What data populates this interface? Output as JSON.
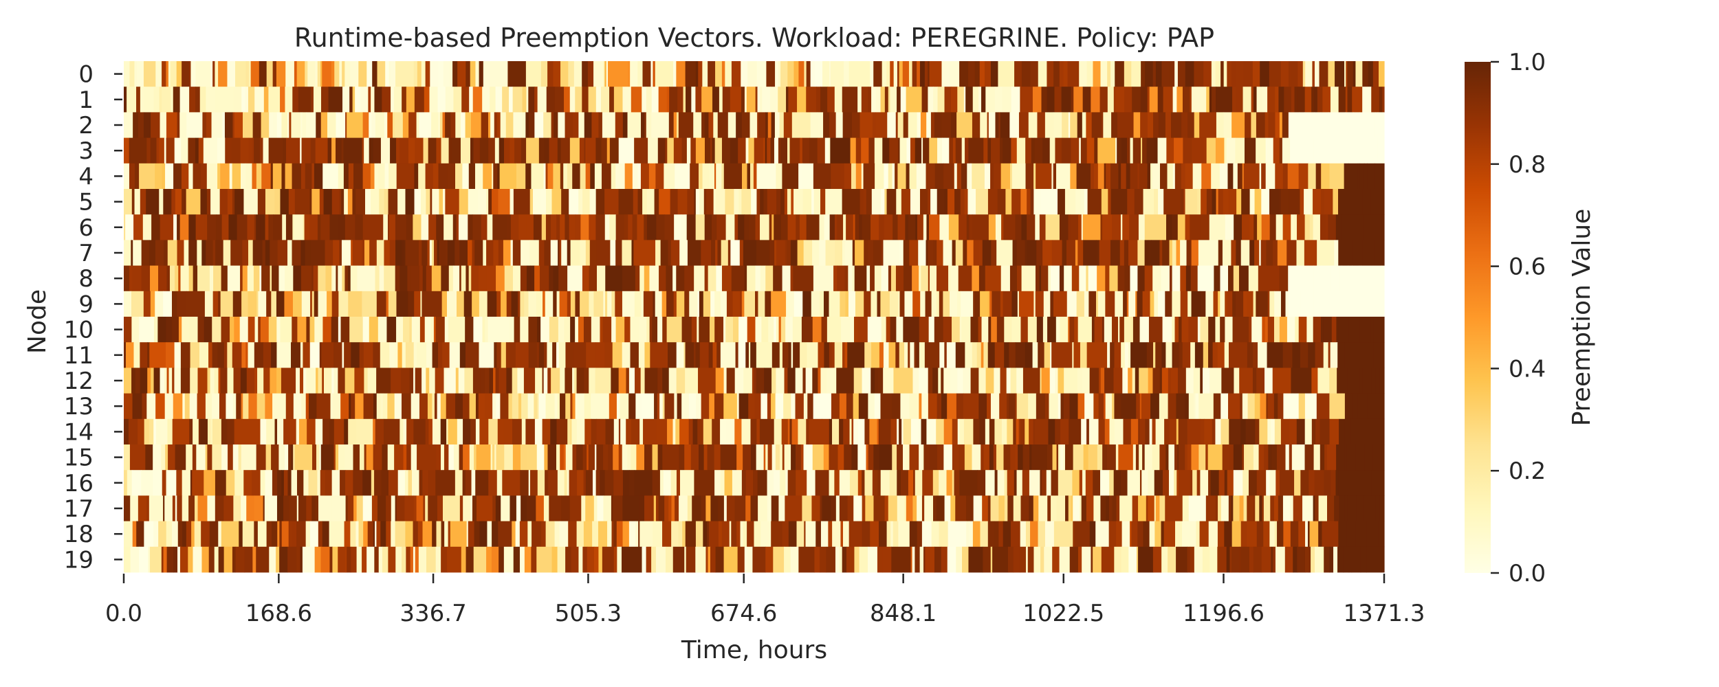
{
  "chart_data": {
    "type": "heatmap",
    "title": "Runtime-based Preemption Vectors. Workload: PEREGRINE. Policy: PAP",
    "xlabel": "Time, hours",
    "ylabel": "Node",
    "rows": [
      "0",
      "1",
      "2",
      "3",
      "4",
      "5",
      "6",
      "7",
      "8",
      "9",
      "10",
      "11",
      "12",
      "13",
      "14",
      "15",
      "16",
      "17",
      "18",
      "19"
    ],
    "x_range": [
      0.0,
      1371.3
    ],
    "x_ticks": [
      0.0,
      168.6,
      336.7,
      505.3,
      674.6,
      848.1,
      1022.5,
      1196.6,
      1371.3
    ],
    "x_tick_labels": [
      "0.0",
      "168.6",
      "336.7",
      "505.3",
      "674.6",
      "848.1",
      "1022.5",
      "1196.6",
      "1371.3"
    ],
    "colorbar": {
      "label": "Preemption Value",
      "range": [
        0.0,
        1.0
      ],
      "ticks": [
        0.0,
        0.2,
        0.4,
        0.6,
        0.8,
        1.0
      ],
      "tick_labels": [
        "0.0",
        "0.2",
        "0.4",
        "0.6",
        "0.8",
        "1.0"
      ],
      "colormap": "YlOrBr",
      "colors": [
        "#ffffe5",
        "#fff7bc",
        "#fee391",
        "#fec44f",
        "#fe9929",
        "#ec7014",
        "#cc4c02",
        "#993404",
        "#662506"
      ]
    },
    "row_density": [
      0.25,
      0.3,
      0.45,
      0.62,
      0.35,
      0.48,
      0.72,
      0.75,
      0.55,
      0.38,
      0.35,
      0.42,
      0.4,
      0.38,
      0.45,
      0.45,
      0.45,
      0.5,
      0.48,
      0.45
    ],
    "row_density_late": [
      0.7,
      0.72,
      0.55,
      0.5,
      0.65,
      0.68,
      0.7,
      0.7,
      0.65,
      0.4,
      0.65,
      0.7,
      0.62,
      0.6,
      0.62,
      0.62,
      0.62,
      0.62,
      0.62,
      0.62
    ],
    "final_segments": [
      {
        "start": 1264.0,
        "end": 1371.3,
        "rows": [
          "2",
          "3",
          "8",
          "9"
        ],
        "value": 0.0
      },
      {
        "start": 1318.0,
        "end": 1371.3,
        "rows": [
          "4",
          "5",
          "6",
          "7",
          "10",
          "11",
          "12",
          "13",
          "14",
          "15",
          "16",
          "17",
          "18",
          "19"
        ],
        "value": 1.0
      }
    ]
  }
}
